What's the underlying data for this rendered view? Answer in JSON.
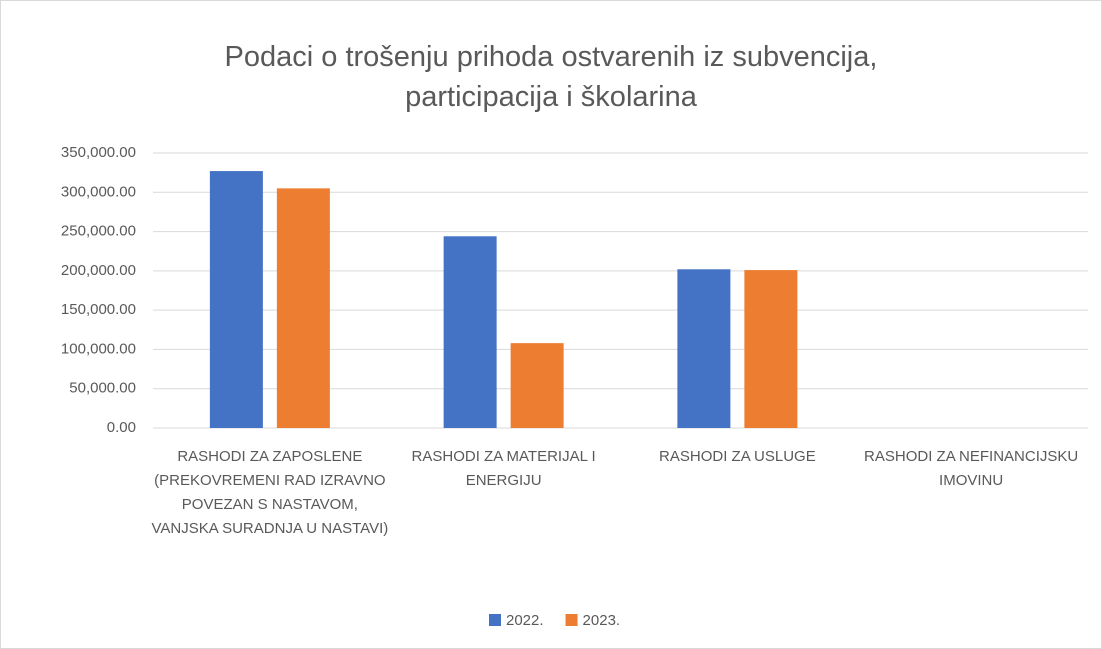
{
  "chart_data": {
    "type": "bar",
    "title": "Podaci o trošenju prihoda ostvarenih iz subvencija, participacija i školarina",
    "categories": [
      "RASHODI ZA ZAPOSLENE (PREKOVREMENI RAD IZRAVNO POVEZAN S NASTAVOM, VANJSKA SURADNJA U NASTAVI)",
      "RASHODI ZA MATERIJAL I ENERGIJU",
      "RASHODI ZA USLUGE",
      "RASHODI ZA NEFINANCIJSKU IMOVINU"
    ],
    "series": [
      {
        "name": "2022.",
        "color": "#4472c4",
        "values": [
          327000,
          244000,
          202000,
          0
        ]
      },
      {
        "name": "2023.",
        "color": "#ed7d31",
        "values": [
          305000,
          108000,
          201000,
          0
        ]
      }
    ],
    "ylim": [
      0,
      350000
    ],
    "yticks": [
      {
        "value": 0,
        "label": "0.00"
      },
      {
        "value": 50000,
        "label": "50,000.00"
      },
      {
        "value": 100000,
        "label": "100,000.00"
      },
      {
        "value": 150000,
        "label": "150,000.00"
      },
      {
        "value": 200000,
        "label": "200,000.00"
      },
      {
        "value": 250000,
        "label": "250,000.00"
      },
      {
        "value": 300000,
        "label": "300,000.00"
      },
      {
        "value": 350000,
        "label": "350,000.00"
      }
    ],
    "grid": true,
    "legend": "bottom"
  }
}
